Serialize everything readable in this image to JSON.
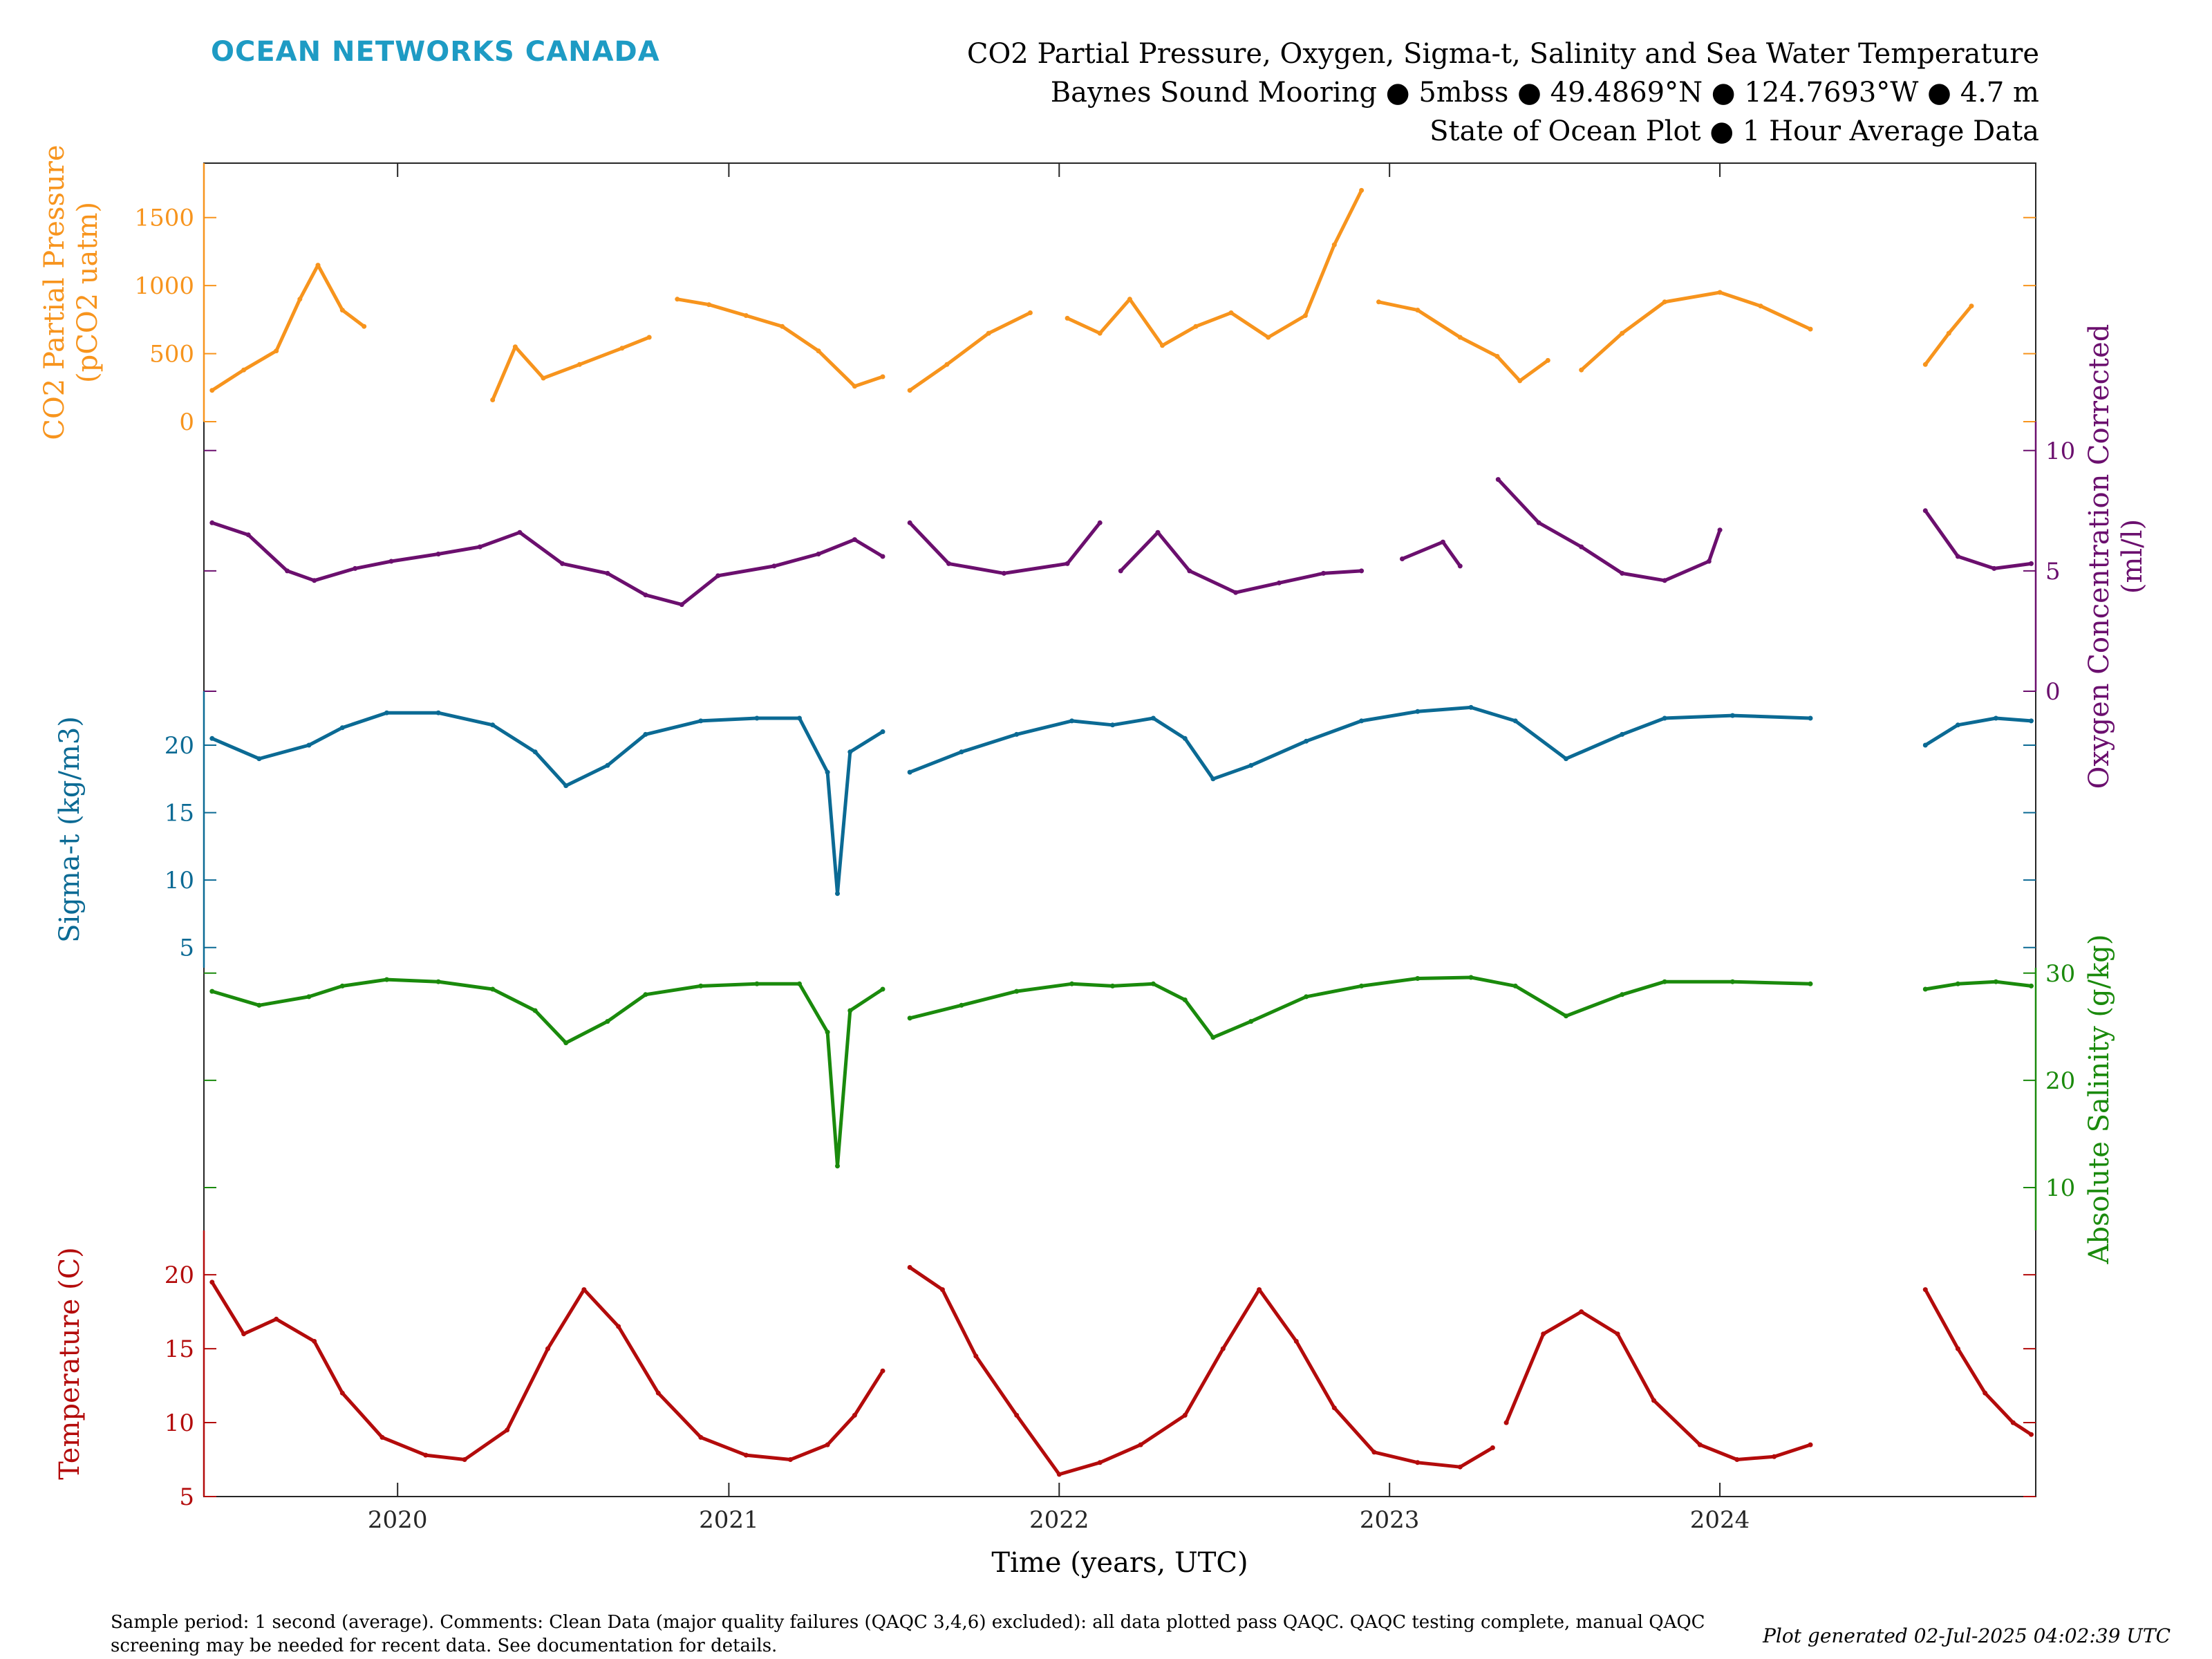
{
  "header": {
    "brand": "OCEAN NETWORKS CANADA",
    "title_line1": "CO2 Partial Pressure, Oxygen, Sigma-t, Salinity and Sea Water Temperature",
    "title_line2": "Baynes Sound Mooring ● 5mbss ● 49.4869°N ● 124.7693°W ● 4.7 m",
    "title_line3": "State of Ocean Plot ● 1 Hour Average Data"
  },
  "footer": {
    "comments": "Sample period: 1 second (average). Comments: Clean Data (major quality failures (QAQC 3,4,6) excluded): all data plotted pass QAQC. QAQC testing complete, manual QAQC screening may be needed for recent data. See documentation for details.",
    "generated": "Plot generated 02-Jul-2025 04:02:39 UTC"
  },
  "chart_data": {
    "type": "line",
    "xlabel": "Time (years, UTC)",
    "x_ticks": [
      "2020",
      "2021",
      "2022",
      "2023",
      "2024"
    ],
    "xlim": [
      "2019-06-01",
      "2024-12-15"
    ],
    "series": [
      {
        "name": "CO2 Partial Pressure",
        "ylabel_lines": [
          "CO2 Partial Pressure",
          "(pCO2 uatm)"
        ],
        "axis_side": "left",
        "color": "#f7941d",
        "ylim": [
          0,
          1900
        ],
        "ticks": [
          "0",
          "500",
          "1000",
          "1500"
        ],
        "tick_values": [
          0,
          500,
          1000,
          1500
        ],
        "points": [
          [
            "2019-06-10",
            230
          ],
          [
            "2019-07-15",
            380
          ],
          [
            "2019-08-20",
            520
          ],
          [
            "2019-09-15",
            900
          ],
          [
            "2019-10-05",
            1150
          ],
          [
            "2019-11-01",
            820
          ],
          [
            "2019-11-25",
            700
          ],
          [
            null,
            null
          ],
          [
            "2020-04-15",
            160
          ],
          [
            "2020-05-10",
            550
          ],
          [
            "2020-06-10",
            320
          ],
          [
            "2020-07-20",
            420
          ],
          [
            "2020-09-05",
            540
          ],
          [
            "2020-10-05",
            620
          ],
          [
            null,
            null
          ],
          [
            "2020-11-05",
            900
          ],
          [
            "2020-12-10",
            860
          ],
          [
            "2021-01-20",
            780
          ],
          [
            "2021-03-01",
            700
          ],
          [
            "2021-04-10",
            520
          ],
          [
            "2021-05-20",
            260
          ],
          [
            "2021-06-20",
            330
          ],
          [
            null,
            null
          ],
          [
            "2021-07-20",
            230
          ],
          [
            "2021-08-30",
            420
          ],
          [
            "2021-10-15",
            650
          ],
          [
            "2021-11-30",
            800
          ],
          [
            null,
            null
          ],
          [
            "2022-01-10",
            760
          ],
          [
            "2022-02-15",
            650
          ],
          [
            "2022-03-20",
            900
          ],
          [
            "2022-04-25",
            560
          ],
          [
            "2022-06-01",
            700
          ],
          [
            "2022-07-10",
            800
          ],
          [
            "2022-08-20",
            620
          ],
          [
            "2022-09-30",
            780
          ],
          [
            "2022-11-01",
            1300
          ],
          [
            "2022-12-01",
            1700
          ],
          [
            null,
            null
          ],
          [
            "2022-12-20",
            880
          ],
          [
            "2023-02-01",
            820
          ],
          [
            "2023-03-20",
            620
          ],
          [
            "2023-04-30",
            480
          ],
          [
            "2023-05-25",
            300
          ],
          [
            "2023-06-25",
            450
          ],
          [
            null,
            null
          ],
          [
            "2023-08-01",
            380
          ],
          [
            "2023-09-15",
            650
          ],
          [
            "2023-11-01",
            880
          ],
          [
            "2024-01-01",
            950
          ],
          [
            "2024-02-15",
            850
          ],
          [
            "2024-04-10",
            680
          ],
          [
            null,
            null
          ],
          [
            "2024-08-15",
            420
          ],
          [
            "2024-09-10",
            650
          ],
          [
            "2024-10-05",
            850
          ]
        ]
      },
      {
        "name": "Oxygen Concentration Corrected",
        "ylabel_lines": [
          "Oxygen Concentration Corrected",
          "(ml/l)"
        ],
        "axis_side": "right",
        "color": "#6b0f6e",
        "ylim": [
          0,
          11.2
        ],
        "ticks": [
          "0",
          "5",
          "10"
        ],
        "tick_values": [
          0,
          5,
          10
        ],
        "points": [
          [
            "2019-06-10",
            7.0
          ],
          [
            "2019-07-20",
            6.5
          ],
          [
            "2019-09-01",
            5.0
          ],
          [
            "2019-10-01",
            4.6
          ],
          [
            "2019-11-15",
            5.1
          ],
          [
            "2019-12-25",
            5.4
          ],
          [
            "2020-02-15",
            5.7
          ],
          [
            "2020-04-01",
            6.0
          ],
          [
            "2020-05-15",
            6.6
          ],
          [
            "2020-07-01",
            5.3
          ],
          [
            "2020-08-20",
            4.9
          ],
          [
            "2020-10-01",
            4.0
          ],
          [
            "2020-11-10",
            3.6
          ],
          [
            "2020-12-20",
            4.8
          ],
          [
            "2021-02-20",
            5.2
          ],
          [
            "2021-04-10",
            5.7
          ],
          [
            "2021-05-20",
            6.3
          ],
          [
            "2021-06-20",
            5.6
          ],
          [
            null,
            null
          ],
          [
            "2021-07-20",
            7.0
          ],
          [
            "2021-09-01",
            5.3
          ],
          [
            "2021-11-01",
            4.9
          ],
          [
            "2022-01-10",
            5.3
          ],
          [
            "2022-02-15",
            7.0
          ],
          [
            null,
            null
          ],
          [
            "2022-03-10",
            5.0
          ],
          [
            "2022-04-20",
            6.6
          ],
          [
            "2022-05-25",
            5.0
          ],
          [
            "2022-07-15",
            4.1
          ],
          [
            "2022-09-01",
            4.5
          ],
          [
            "2022-10-20",
            4.9
          ],
          [
            "2022-12-01",
            5.0
          ],
          [
            null,
            null
          ],
          [
            "2023-01-15",
            5.5
          ],
          [
            "2023-03-01",
            6.2
          ],
          [
            "2023-03-20",
            5.2
          ],
          [
            null,
            null
          ],
          [
            "2023-05-01",
            8.8
          ],
          [
            "2023-06-15",
            7.0
          ],
          [
            "2023-08-01",
            6.0
          ],
          [
            "2023-09-15",
            4.9
          ],
          [
            "2023-11-01",
            4.6
          ],
          [
            "2023-12-20",
            5.4
          ],
          [
            "2024-01-01",
            6.7
          ],
          [
            null,
            null
          ],
          [
            "2024-08-15",
            7.5
          ],
          [
            "2024-09-20",
            5.6
          ],
          [
            "2024-10-30",
            5.1
          ],
          [
            "2024-12-10",
            5.3
          ]
        ]
      },
      {
        "name": "Sigma-t",
        "ylabel_lines": [
          "Sigma-t (kg/m3)"
        ],
        "axis_side": "left",
        "color": "#0b6a94",
        "ylim": [
          3.5,
          24.0
        ],
        "ticks": [
          "5",
          "10",
          "15",
          "20"
        ],
        "tick_values": [
          5,
          10,
          15,
          20
        ],
        "points": [
          [
            "2019-06-10",
            20.5
          ],
          [
            "2019-08-01",
            19.0
          ],
          [
            "2019-09-25",
            20.0
          ],
          [
            "2019-11-01",
            21.3
          ],
          [
            "2019-12-20",
            22.4
          ],
          [
            "2020-02-15",
            22.4
          ],
          [
            "2020-04-15",
            21.5
          ],
          [
            "2020-06-01",
            19.5
          ],
          [
            "2020-07-05",
            17.0
          ],
          [
            "2020-08-20",
            18.5
          ],
          [
            "2020-10-01",
            20.8
          ],
          [
            "2020-12-01",
            21.8
          ],
          [
            "2021-02-01",
            22.0
          ],
          [
            "2021-03-20",
            22.0
          ],
          [
            "2021-04-20",
            18.0
          ],
          [
            "2021-05-01",
            9.0
          ],
          [
            "2021-05-15",
            19.5
          ],
          [
            "2021-06-20",
            21.0
          ],
          [
            null,
            null
          ],
          [
            "2021-07-20",
            18.0
          ],
          [
            "2021-09-15",
            19.5
          ],
          [
            "2021-11-15",
            20.8
          ],
          [
            "2022-01-15",
            21.8
          ],
          [
            "2022-03-01",
            21.5
          ],
          [
            "2022-04-15",
            22.0
          ],
          [
            "2022-05-20",
            20.5
          ],
          [
            "2022-06-20",
            17.5
          ],
          [
            "2022-08-01",
            18.5
          ],
          [
            "2022-10-01",
            20.3
          ],
          [
            "2022-12-01",
            21.8
          ],
          [
            "2023-02-01",
            22.5
          ],
          [
            "2023-04-01",
            22.8
          ],
          [
            "2023-05-20",
            21.8
          ],
          [
            "2023-07-15",
            19.0
          ],
          [
            "2023-09-15",
            20.8
          ],
          [
            "2023-11-01",
            22.0
          ],
          [
            "2024-01-15",
            22.2
          ],
          [
            "2024-04-10",
            22.0
          ],
          [
            null,
            null
          ],
          [
            "2024-08-15",
            20.0
          ],
          [
            "2024-09-20",
            21.5
          ],
          [
            "2024-11-01",
            22.0
          ],
          [
            "2024-12-10",
            21.8
          ]
        ]
      },
      {
        "name": "Absolute Salinity",
        "ylabel_lines": [
          "Absolute Salinity (g/kg)"
        ],
        "axis_side": "right",
        "color": "#1a8a0c",
        "ylim": [
          6.0,
          30.5
        ],
        "ticks": [
          "10",
          "20",
          "30"
        ],
        "tick_values": [
          10,
          20,
          30
        ],
        "points": [
          [
            "2019-06-10",
            28.3
          ],
          [
            "2019-08-01",
            27.0
          ],
          [
            "2019-09-25",
            27.8
          ],
          [
            "2019-11-01",
            28.8
          ],
          [
            "2019-12-20",
            29.4
          ],
          [
            "2020-02-15",
            29.2
          ],
          [
            "2020-04-15",
            28.5
          ],
          [
            "2020-06-01",
            26.5
          ],
          [
            "2020-07-05",
            23.5
          ],
          [
            "2020-08-20",
            25.5
          ],
          [
            "2020-10-01",
            28.0
          ],
          [
            "2020-12-01",
            28.8
          ],
          [
            "2021-02-01",
            29.0
          ],
          [
            "2021-03-20",
            29.0
          ],
          [
            "2021-04-20",
            24.5
          ],
          [
            "2021-05-01",
            12.0
          ],
          [
            "2021-05-15",
            26.5
          ],
          [
            "2021-06-20",
            28.5
          ],
          [
            null,
            null
          ],
          [
            "2021-07-20",
            25.8
          ],
          [
            "2021-09-15",
            27.0
          ],
          [
            "2021-11-15",
            28.3
          ],
          [
            "2022-01-15",
            29.0
          ],
          [
            "2022-03-01",
            28.8
          ],
          [
            "2022-04-15",
            29.0
          ],
          [
            "2022-05-20",
            27.5
          ],
          [
            "2022-06-20",
            24.0
          ],
          [
            "2022-08-01",
            25.5
          ],
          [
            "2022-10-01",
            27.8
          ],
          [
            "2022-12-01",
            28.8
          ],
          [
            "2023-02-01",
            29.5
          ],
          [
            "2023-04-01",
            29.6
          ],
          [
            "2023-05-20",
            28.8
          ],
          [
            "2023-07-15",
            26.0
          ],
          [
            "2023-09-15",
            28.0
          ],
          [
            "2023-11-01",
            29.2
          ],
          [
            "2024-01-15",
            29.2
          ],
          [
            "2024-04-10",
            29.0
          ],
          [
            null,
            null
          ],
          [
            "2024-08-15",
            28.5
          ],
          [
            "2024-09-20",
            29.0
          ],
          [
            "2024-11-01",
            29.2
          ],
          [
            "2024-12-10",
            28.8
          ]
        ]
      },
      {
        "name": "Temperature",
        "ylabel_lines": [
          "Temperature (C)"
        ],
        "axis_side": "left",
        "color": "#b30b0b",
        "ylim": [
          5,
          23
        ],
        "ticks": [
          "5",
          "10",
          "15",
          "20"
        ],
        "tick_values": [
          5,
          10,
          15,
          20
        ],
        "points": [
          [
            "2019-06-10",
            19.5
          ],
          [
            "2019-07-15",
            16.0
          ],
          [
            "2019-08-20",
            17.0
          ],
          [
            "2019-10-01",
            15.5
          ],
          [
            "2019-11-01",
            12.0
          ],
          [
            "2019-12-15",
            9.0
          ],
          [
            "2020-02-01",
            7.8
          ],
          [
            "2020-03-15",
            7.5
          ],
          [
            "2020-05-01",
            9.5
          ],
          [
            "2020-06-15",
            15.0
          ],
          [
            "2020-07-25",
            19.0
          ],
          [
            "2020-09-01",
            16.5
          ],
          [
            "2020-10-15",
            12.0
          ],
          [
            "2020-12-01",
            9.0
          ],
          [
            "2021-01-20",
            7.8
          ],
          [
            "2021-03-10",
            7.5
          ],
          [
            "2021-04-20",
            8.5
          ],
          [
            "2021-05-20",
            10.5
          ],
          [
            "2021-06-20",
            13.5
          ],
          [
            null,
            null
          ],
          [
            "2021-07-20",
            20.5
          ],
          [
            "2021-08-25",
            19.0
          ],
          [
            "2021-10-01",
            14.5
          ],
          [
            "2021-11-15",
            10.5
          ],
          [
            "2022-01-01",
            6.5
          ],
          [
            "2022-02-15",
            7.3
          ],
          [
            "2022-04-01",
            8.5
          ],
          [
            "2022-05-20",
            10.5
          ],
          [
            "2022-07-01",
            15.0
          ],
          [
            "2022-08-10",
            19.0
          ],
          [
            "2022-09-20",
            15.5
          ],
          [
            "2022-11-01",
            11.0
          ],
          [
            "2022-12-15",
            8.0
          ],
          [
            "2023-02-01",
            7.3
          ],
          [
            "2023-03-20",
            7.0
          ],
          [
            "2023-04-25",
            8.3
          ],
          [
            null,
            null
          ],
          [
            "2023-05-10",
            10.0
          ],
          [
            "2023-06-20",
            16.0
          ],
          [
            "2023-08-01",
            17.5
          ],
          [
            "2023-09-10",
            16.0
          ],
          [
            "2023-10-20",
            11.5
          ],
          [
            "2023-12-10",
            8.5
          ],
          [
            "2024-01-20",
            7.5
          ],
          [
            "2024-03-01",
            7.7
          ],
          [
            "2024-04-10",
            8.5
          ],
          [
            null,
            null
          ],
          [
            "2024-08-15",
            19.0
          ],
          [
            "2024-09-20",
            15.0
          ],
          [
            "2024-10-20",
            12.0
          ],
          [
            "2024-11-20",
            10.0
          ],
          [
            "2024-12-10",
            9.2
          ]
        ]
      }
    ]
  }
}
